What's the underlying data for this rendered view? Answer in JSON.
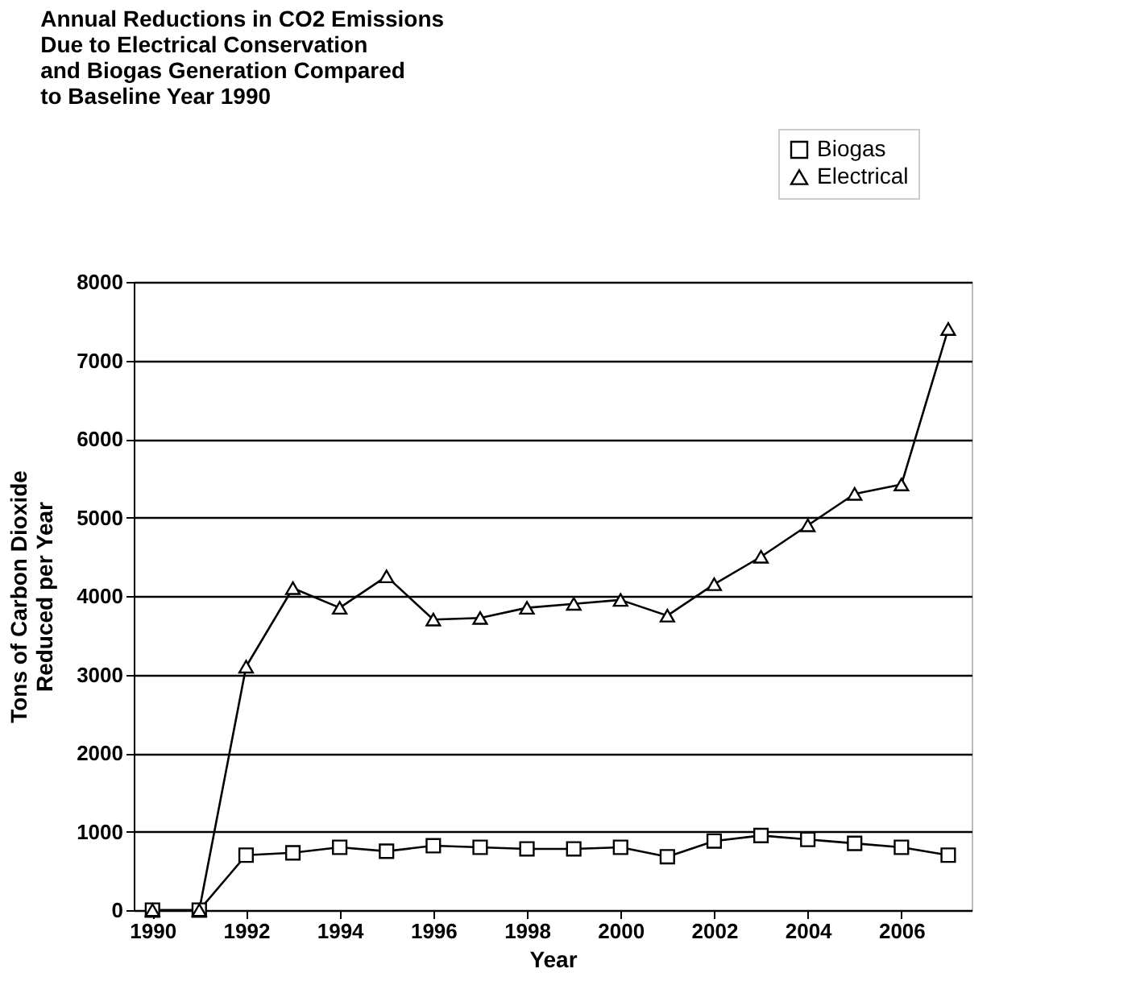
{
  "chart_data": {
    "type": "line",
    "title": "Annual Reductions in CO2 Emissions\nDue to Electrical Conservation\nand Biogas Generation Compared\nto Baseline Year 1990",
    "xlabel": "Year",
    "ylabel": "Tons of Carbon Dioxide\nReduced per Year",
    "x": [
      1990,
      1991,
      1992,
      1993,
      1994,
      1995,
      1996,
      1997,
      1998,
      1999,
      2000,
      2001,
      2002,
      2003,
      2004,
      2005,
      2006,
      2007
    ],
    "series": [
      {
        "name": "Biogas",
        "color": "#000000",
        "marker": "square",
        "values": [
          0,
          0,
          700,
          730,
          800,
          750,
          820,
          800,
          780,
          780,
          800,
          680,
          880,
          950,
          900,
          850,
          800,
          700
        ]
      },
      {
        "name": "Electrical",
        "color": "#000000",
        "marker": "triangle",
        "values": [
          0,
          0,
          3100,
          4100,
          3850,
          4250,
          3700,
          3720,
          3850,
          3900,
          3950,
          3750,
          4150,
          4500,
          4900,
          5300,
          5420,
          7400
        ]
      }
    ],
    "xlim": [
      1989.6,
      2007.5
    ],
    "xticks": [
      1990,
      1992,
      1994,
      1996,
      1998,
      2000,
      2002,
      2004,
      2006
    ],
    "ylim": [
      0,
      8000
    ],
    "yticks": [
      0,
      1000,
      2000,
      3000,
      4000,
      5000,
      6000,
      7000,
      8000
    ],
    "grid": "y",
    "legend": "top right",
    "line_style": "solid"
  }
}
